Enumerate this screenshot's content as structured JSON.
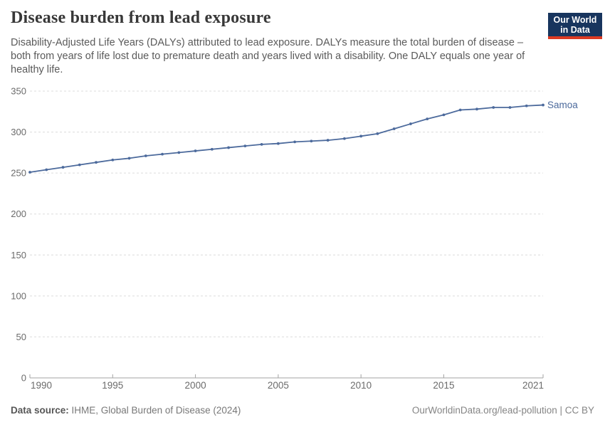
{
  "header": {
    "title": "Disease burden from lead exposure",
    "subtitle": "Disability-Adjusted Life Years (DALYs) attributed to lead exposure. DALYs measure the total burden of disease – both from years of life lost due to premature death and years lived with a disability. One DALY equals one year of healthy life.",
    "logo": {
      "line1": "Our World",
      "line2": "in Data"
    }
  },
  "footer": {
    "source_label": "Data source:",
    "source_text": " IHME, Global Burden of Disease (2024)",
    "license_text": "OurWorldinData.org/lead-pollution | CC BY"
  },
  "colors": {
    "line": "#4C6A9C",
    "gridline": "#dcdcdc",
    "axis": "#a3a3a3",
    "tick_label": "#6b6b6b",
    "logo_navy": "#18355e",
    "logo_red": "#dc3a23"
  },
  "chart_data": {
    "type": "line",
    "title": "Disease burden from lead exposure",
    "entity_label": "Samoa",
    "x": [
      1990,
      1991,
      1992,
      1993,
      1994,
      1995,
      1996,
      1997,
      1998,
      1999,
      2000,
      2001,
      2002,
      2003,
      2004,
      2005,
      2006,
      2007,
      2008,
      2009,
      2010,
      2011,
      2012,
      2013,
      2014,
      2015,
      2016,
      2017,
      2018,
      2019,
      2020,
      2021
    ],
    "series": [
      {
        "name": "Samoa",
        "values": [
          251,
          254,
          257,
          260,
          263,
          266,
          268,
          271,
          273,
          275,
          277,
          279,
          281,
          283,
          285,
          286,
          288,
          289,
          290,
          292,
          295,
          298,
          304,
          310,
          316,
          321,
          327,
          328,
          330,
          330,
          332,
          333
        ]
      }
    ],
    "xlabel": "",
    "ylabel": "",
    "ylim": [
      0,
      350
    ],
    "yticks": [
      0,
      50,
      100,
      150,
      200,
      250,
      300,
      350
    ],
    "xticks": [
      1990,
      1995,
      2000,
      2005,
      2010,
      2015,
      2021
    ],
    "grid": true,
    "grid_style": "dashed",
    "legend_position": "end-of-line-label",
    "marker": "circle"
  }
}
